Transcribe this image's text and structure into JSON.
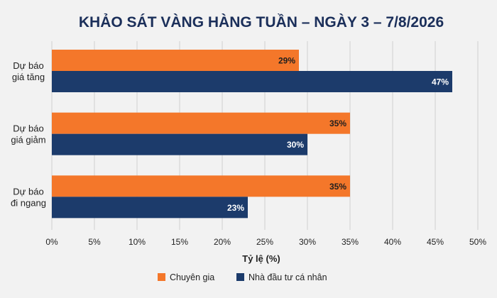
{
  "colors": {
    "background": "#f2f2f2",
    "title": "#1b2f5a",
    "grid": "#d0d0d0",
    "axis_text": "#222222",
    "bar_label": "#1f1f1f",
    "bar_label_on_dark": "#ffffff"
  },
  "chart_data": {
    "type": "bar",
    "orientation": "horizontal",
    "title": "KHẢO SÁT VÀNG HÀNG TUẦN – NGÀY 3 – 7/8/2026",
    "xlabel": "Tỷ lệ (%)",
    "ylabel": "",
    "xlim": [
      0,
      50
    ],
    "x_ticks": [
      "0%",
      "5%",
      "10%",
      "15%",
      "20%",
      "25%",
      "30%",
      "35%",
      "40%",
      "45%",
      "50%"
    ],
    "grid": "vertical",
    "legend_position": "bottom",
    "categories": [
      [
        "Dự báo",
        "giá tăng"
      ],
      [
        "Dự báo",
        "giá giảm"
      ],
      [
        "Dự báo",
        "đi ngang"
      ]
    ],
    "series": [
      {
        "name": "Chuyên gia",
        "color": "#f4772a",
        "values": [
          29,
          35,
          35
        ],
        "labels": [
          "29%",
          "35%",
          "35%"
        ]
      },
      {
        "name": "Nhà đầu tư cá nhân",
        "color": "#1c3b6b",
        "values": [
          47,
          30,
          23
        ],
        "labels": [
          "47%",
          "30%",
          "23%"
        ]
      }
    ]
  }
}
